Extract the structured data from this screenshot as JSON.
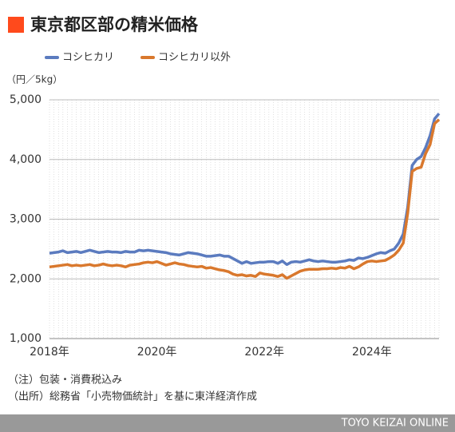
{
  "chart_data": {
    "type": "line",
    "title": "東京都区部の精米価格",
    "unit_label": "（円／5kg）",
    "notes": [
      "（注）包装・消費税込み",
      "（出所）総務省「小売物価統計」を基に東洋経済作成"
    ],
    "credit": "TOYO KEIZAI ONLINE",
    "categories": [
      "2018年",
      null,
      null,
      null,
      null,
      null,
      null,
      null,
      null,
      null,
      null,
      null,
      null,
      null,
      null,
      null,
      null,
      null,
      null,
      null,
      null,
      null,
      null,
      null,
      "2020年",
      null,
      null,
      null,
      null,
      null,
      null,
      null,
      null,
      null,
      null,
      null,
      null,
      null,
      null,
      null,
      null,
      null,
      null,
      null,
      null,
      null,
      null,
      null,
      "2022年",
      null,
      null,
      null,
      null,
      null,
      null,
      null,
      null,
      null,
      null,
      null,
      null,
      null,
      null,
      null,
      null,
      null,
      null,
      null,
      null,
      null,
      null,
      null,
      "2024年",
      null,
      null,
      null,
      null,
      null,
      null,
      null,
      null,
      null,
      null,
      null,
      null,
      null,
      null,
      null
    ],
    "series": [
      {
        "name": "コシヒカリ",
        "color": "#5b7bbf",
        "values": [
          2430,
          2440,
          2450,
          2470,
          2440,
          2450,
          2460,
          2440,
          2460,
          2480,
          2460,
          2440,
          2450,
          2460,
          2450,
          2450,
          2440,
          2460,
          2450,
          2450,
          2480,
          2470,
          2480,
          2470,
          2460,
          2450,
          2440,
          2420,
          2410,
          2400,
          2420,
          2440,
          2430,
          2420,
          2400,
          2380,
          2380,
          2390,
          2400,
          2380,
          2380,
          2340,
          2300,
          2260,
          2290,
          2260,
          2270,
          2280,
          2280,
          2290,
          2290,
          2260,
          2300,
          2240,
          2280,
          2290,
          2280,
          2300,
          2320,
          2300,
          2290,
          2300,
          2290,
          2280,
          2280,
          2290,
          2300,
          2320,
          2310,
          2350,
          2340,
          2360,
          2390,
          2420,
          2440,
          2430,
          2470,
          2500,
          2600,
          2750,
          3200,
          3900,
          4000,
          4050,
          4200,
          4400,
          4680,
          4770
        ]
      },
      {
        "name": "コシヒカリ以外",
        "color": "#d9782d",
        "values": [
          2200,
          2210,
          2220,
          2230,
          2240,
          2220,
          2230,
          2220,
          2230,
          2240,
          2220,
          2230,
          2250,
          2230,
          2220,
          2230,
          2220,
          2200,
          2230,
          2240,
          2250,
          2270,
          2280,
          2270,
          2290,
          2260,
          2230,
          2250,
          2270,
          2250,
          2240,
          2220,
          2210,
          2200,
          2210,
          2180,
          2190,
          2170,
          2150,
          2140,
          2120,
          2080,
          2060,
          2070,
          2050,
          2060,
          2040,
          2100,
          2080,
          2070,
          2060,
          2040,
          2070,
          2010,
          2050,
          2090,
          2130,
          2150,
          2160,
          2160,
          2160,
          2170,
          2170,
          2180,
          2170,
          2190,
          2180,
          2210,
          2170,
          2200,
          2250,
          2290,
          2300,
          2290,
          2300,
          2310,
          2350,
          2400,
          2480,
          2600,
          3100,
          3800,
          3850,
          3870,
          4100,
          4250,
          4600,
          4670
        ]
      }
    ],
    "ylim": [
      1000,
      5000
    ],
    "yticks": [
      {
        "value": 1000,
        "label": "1,000"
      },
      {
        "value": 2000,
        "label": "2,000"
      },
      {
        "value": 3000,
        "label": "3,000"
      },
      {
        "value": 4000,
        "label": "4,000"
      },
      {
        "value": 5000,
        "label": "5,000"
      }
    ],
    "grid": true
  }
}
